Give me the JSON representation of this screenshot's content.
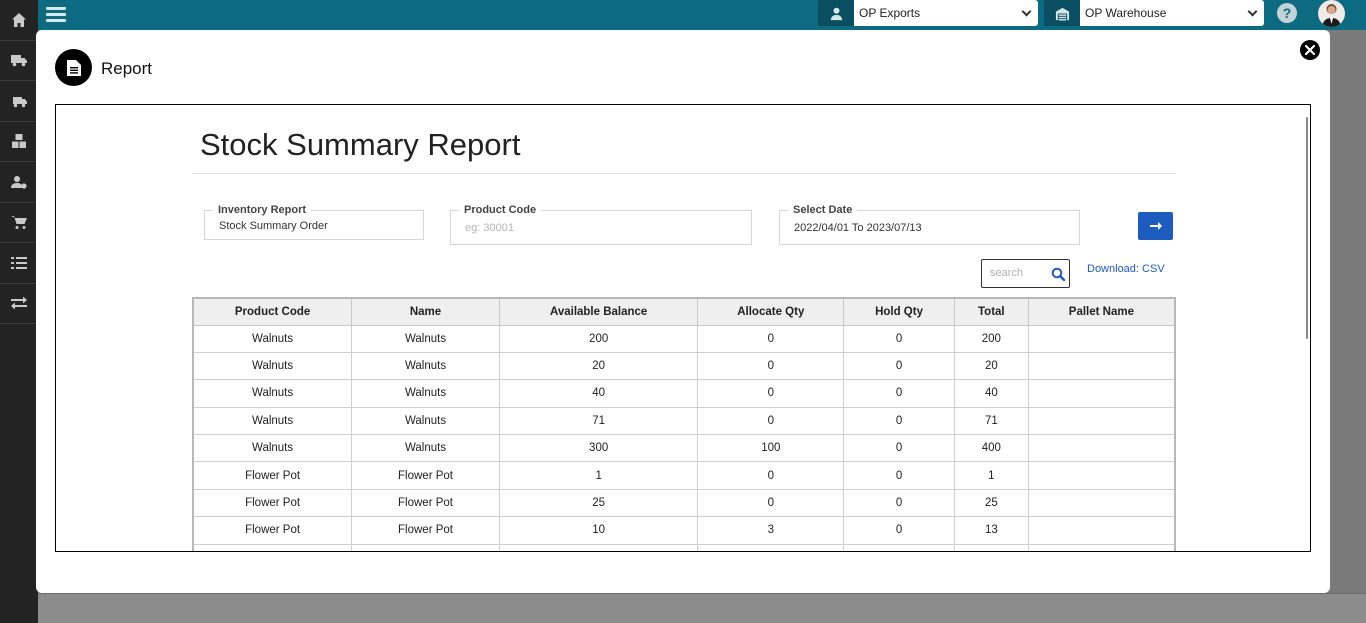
{
  "header": {
    "company_select": "OP Exports",
    "warehouse_select": "OP Warehouse",
    "help_label": "?"
  },
  "modal": {
    "title": "Report",
    "report_title": "Stock Summary Report",
    "filters": {
      "inventory_report": {
        "label": "Inventory Report",
        "value": "Stock Summary Order"
      },
      "product_code": {
        "label": "Product Code",
        "placeholder": "eg: 30001"
      },
      "select_date": {
        "label": "Select Date",
        "value": "2022/04/01 To 2023/07/13"
      }
    },
    "search_placeholder": "search",
    "download_label": "Download: CSV",
    "table": {
      "headers": [
        "Product Code",
        "Name",
        "Available Balance",
        "Allocate Qty",
        "Hold Qty",
        "Total",
        "Pallet Name"
      ],
      "rows": [
        [
          "Walnuts",
          "Walnuts",
          "200",
          "0",
          "0",
          "200",
          ""
        ],
        [
          "Walnuts",
          "Walnuts",
          "20",
          "0",
          "0",
          "20",
          ""
        ],
        [
          "Walnuts",
          "Walnuts",
          "40",
          "0",
          "0",
          "40",
          ""
        ],
        [
          "Walnuts",
          "Walnuts",
          "71",
          "0",
          "0",
          "71",
          ""
        ],
        [
          "Walnuts",
          "Walnuts",
          "300",
          "100",
          "0",
          "400",
          ""
        ],
        [
          "Flower Pot",
          "Flower Pot",
          "1",
          "0",
          "0",
          "1",
          ""
        ],
        [
          "Flower Pot",
          "Flower Pot",
          "25",
          "0",
          "0",
          "25",
          ""
        ],
        [
          "Flower Pot",
          "Flower Pot",
          "10",
          "3",
          "0",
          "13",
          ""
        ],
        [
          "",
          "",
          "",
          "",
          "",
          "",
          ""
        ]
      ]
    }
  },
  "colors": {
    "topbar": "#0c6b80",
    "sidebar": "#232323",
    "accent_button": "#1d5bbf"
  },
  "icons": {
    "sidebar": [
      "home-icon",
      "truck-icon",
      "delivery-truck-icon",
      "boxes-icon",
      "user-settings-icon",
      "cart-icon",
      "checklist-icon",
      "transfer-icon"
    ]
  }
}
